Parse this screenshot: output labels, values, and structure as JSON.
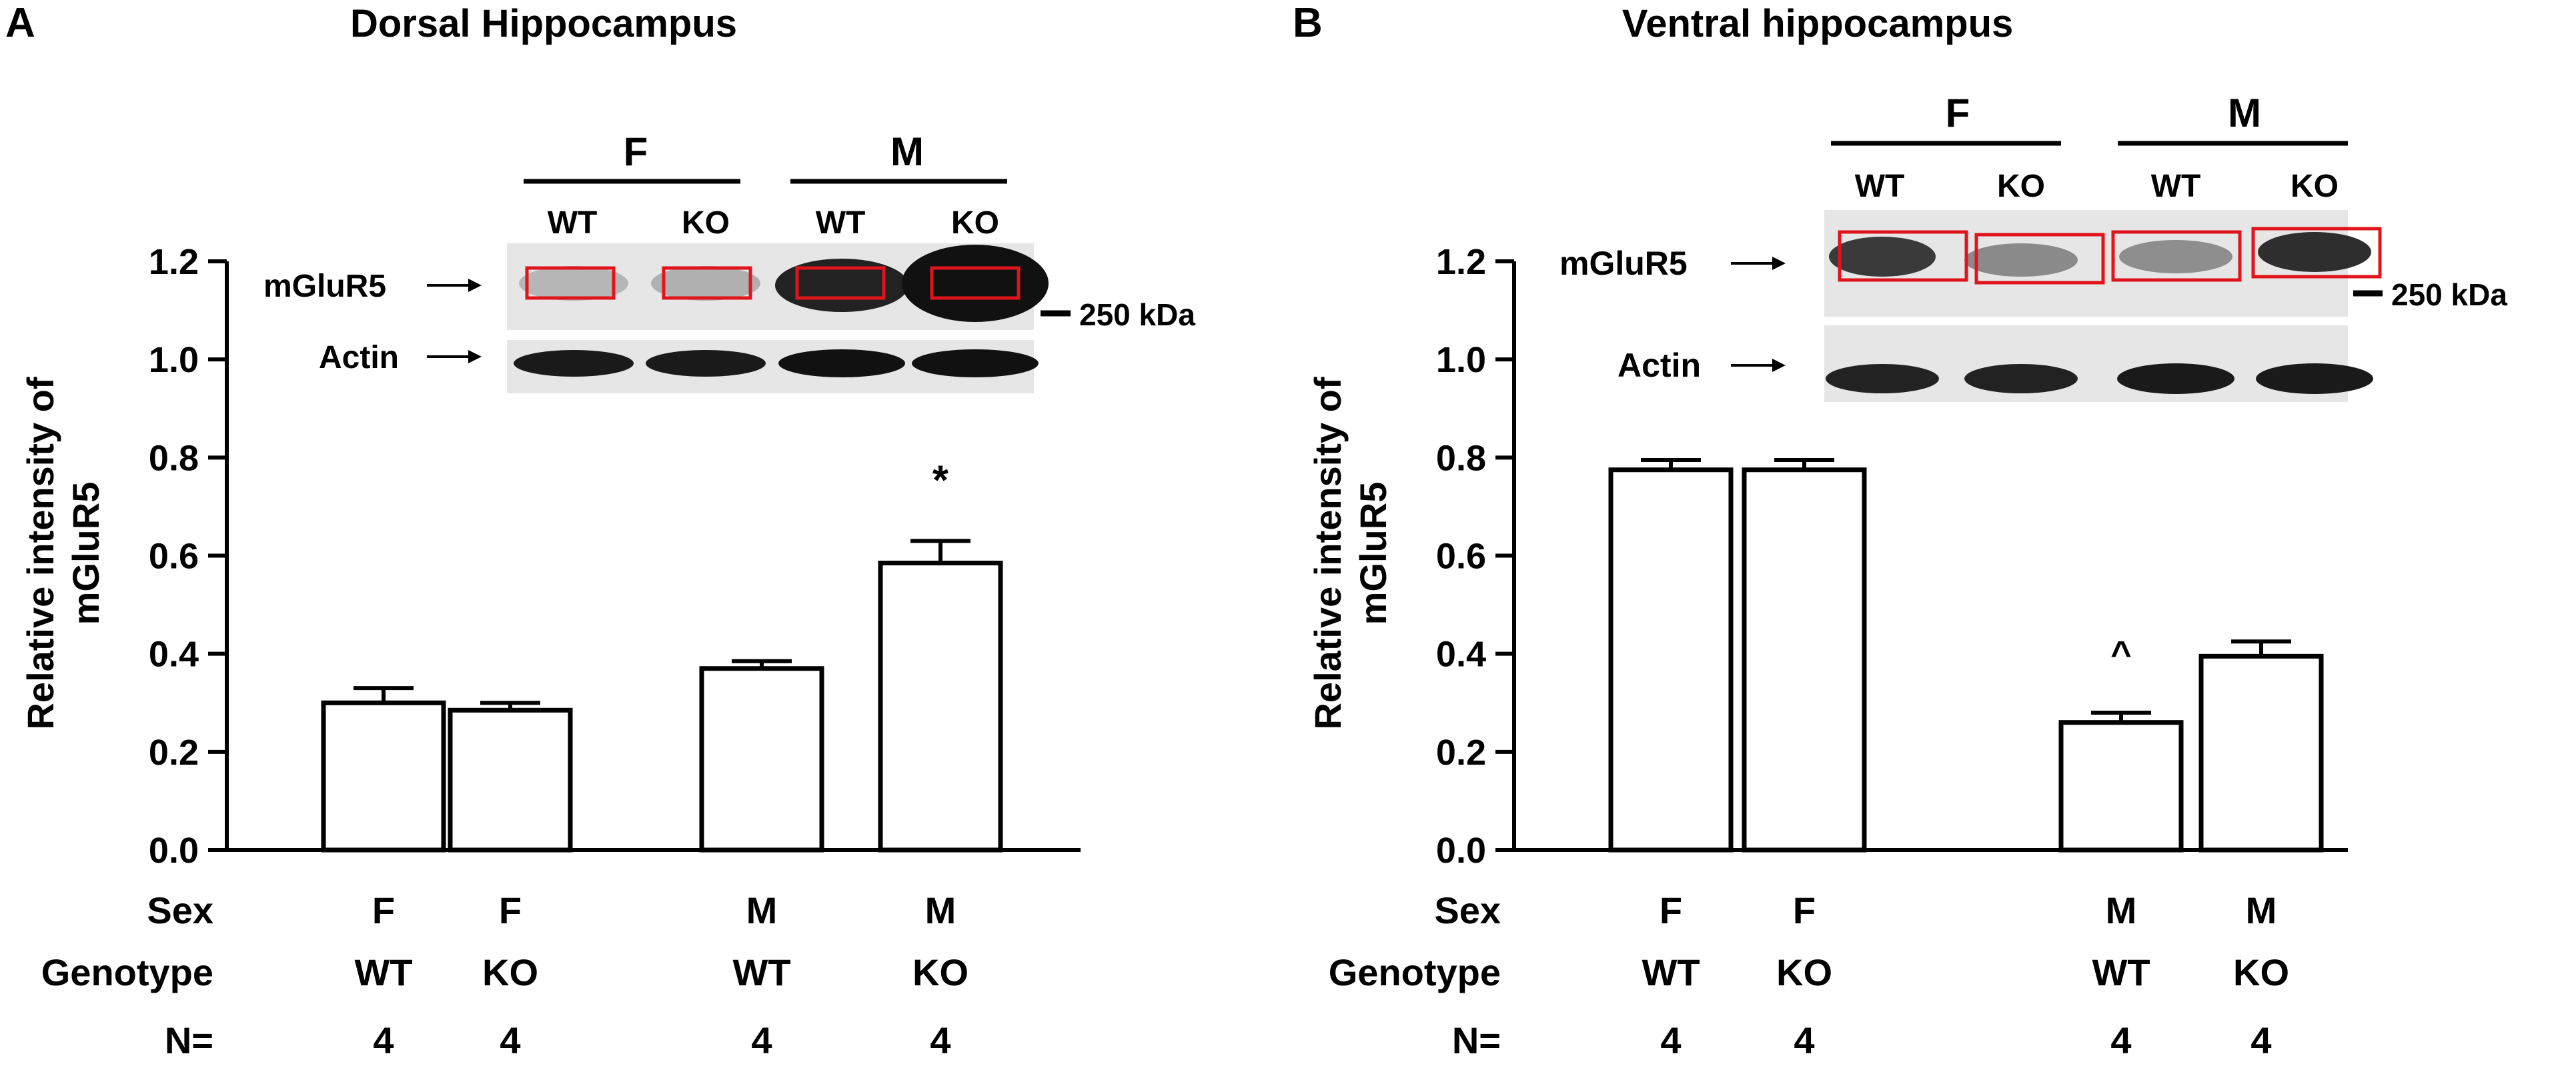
{
  "panels": [
    {
      "letter": "A",
      "title": "Dorsal Hippocampus",
      "ylabel_line1": "Relative intensity of",
      "ylabel_line2": "mGluR5",
      "blot": {
        "sex_labels": [
          "F",
          "M"
        ],
        "genotype_labels": [
          "WT",
          "KO",
          "WT",
          "KO"
        ],
        "target_label": "mGluR5",
        "control_label": "Actin",
        "marker_label": "250 kDa",
        "highlight_color": "#e0141a"
      },
      "row_labels": {
        "sex": "Sex",
        "genotype": "Genotype",
        "n": "N="
      }
    },
    {
      "letter": "B",
      "title": "Ventral hippocampus",
      "ylabel_line1": "Relative intensity of",
      "ylabel_line2": "mGluR5",
      "blot": {
        "sex_labels": [
          "F",
          "M"
        ],
        "genotype_labels": [
          "WT",
          "KO",
          "WT",
          "KO"
        ],
        "target_label": "mGluR5",
        "control_label": "Actin",
        "marker_label": "250 kDa",
        "highlight_color": "#e0141a"
      },
      "row_labels": {
        "sex": "Sex",
        "genotype": "Genotype",
        "n": "N="
      }
    }
  ],
  "chart_data": [
    {
      "type": "bar",
      "title": "Dorsal Hippocampus",
      "ylabel": "Relative intensity of mGluR5",
      "ylim": [
        0,
        1.2
      ],
      "yticks": [
        "0.0",
        "0.2",
        "0.4",
        "0.6",
        "0.8",
        "1.0",
        "1.2"
      ],
      "categories": [
        {
          "sex": "F",
          "genotype": "WT",
          "n": "4"
        },
        {
          "sex": "F",
          "genotype": "KO",
          "n": "4"
        },
        {
          "sex": "M",
          "genotype": "WT",
          "n": "4"
        },
        {
          "sex": "M",
          "genotype": "KO",
          "n": "4"
        }
      ],
      "values": [
        0.3,
        0.285,
        0.37,
        0.585
      ],
      "errors": [
        0.03,
        0.015,
        0.015,
        0.045
      ],
      "annotations": [
        "",
        "",
        "",
        "*"
      ]
    },
    {
      "type": "bar",
      "title": "Ventral hippocampus",
      "ylabel": "Relative intensity of mGluR5",
      "ylim": [
        0,
        1.2
      ],
      "yticks": [
        "0.0",
        "0.2",
        "0.4",
        "0.6",
        "0.8",
        "1.0",
        "1.2"
      ],
      "categories": [
        {
          "sex": "F",
          "genotype": "WT",
          "n": "4"
        },
        {
          "sex": "F",
          "genotype": "KO",
          "n": "4"
        },
        {
          "sex": "M",
          "genotype": "WT",
          "n": "4"
        },
        {
          "sex": "M",
          "genotype": "KO",
          "n": "4"
        }
      ],
      "values": [
        0.775,
        0.775,
        0.26,
        0.395
      ],
      "errors": [
        0.02,
        0.02,
        0.02,
        0.03
      ],
      "annotations": [
        "",
        "",
        "^",
        ""
      ]
    }
  ]
}
